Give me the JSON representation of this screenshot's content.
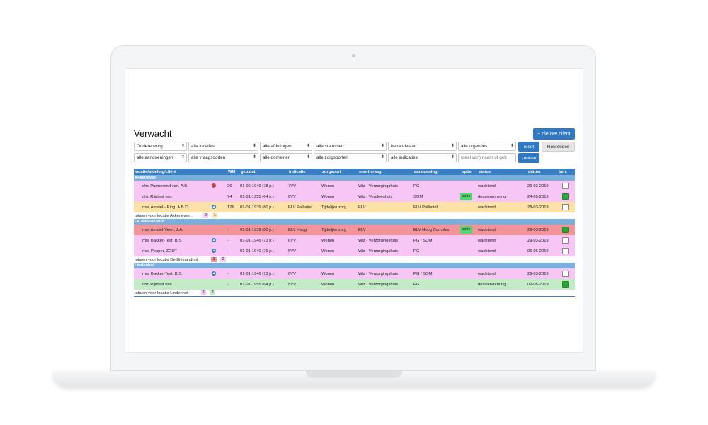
{
  "page": {
    "title": "Verwacht",
    "new_client_label": "+ nieuwe cliënt"
  },
  "filters": {
    "row1": [
      "Ouderenzorg",
      "alle locaties",
      "alle afdelingen",
      "alle statussen",
      "behandelaar",
      "alle urgenties"
    ],
    "row2": [
      "alle aandoeningen",
      "alle vraagsoorten",
      "alle domeinen",
      "alle zorgsoorten",
      "alle indicaties"
    ],
    "search_placeholder": "(deel van) naam of geb",
    "reset_label": "reset",
    "zoeken_label": "zoeken",
    "kleurcodes_label": "kleurcodes"
  },
  "table": {
    "headers": [
      "locatie/afdeling/cliënt",
      "WM",
      "geb.dat.",
      "indicatie",
      "zorgsoort",
      "soort vraag",
      "aandoening",
      "optie",
      "status",
      "datum",
      "beh."
    ],
    "groups": [
      {
        "name": "Akkerleven",
        "rows": [
          {
            "client": "dhr. Purmerend van, A.B.",
            "icon": "stop-icon",
            "wm": "26",
            "geb": "01-06-1940 (78 jr.)",
            "indicatie": "7VV",
            "zorgsoort": "Wonen",
            "vraag": "Wlz - Verzorgingshuis",
            "aandoening": "PG",
            "optie": "",
            "status": "wachtend",
            "datum": "29-03-2019",
            "beh": "unchecked",
            "color": "#f7c6f5"
          },
          {
            "client": "dhr. Rijntest van",
            "icon": "",
            "wm": "74",
            "geb": "01-01-1955 (64 jr.)",
            "indicatie": "6VV",
            "zorgsoort": "Wonen",
            "vraag": "Wlz - Verpleeghuis",
            "aandoening": "SOM",
            "optie": "optie",
            "status": "dossiervorming",
            "datum": "24-05-2019",
            "beh": "checked",
            "color": "#f7c6f5"
          },
          {
            "client": "mw. Amstel - Ring, A.B.C.",
            "icon": "arrow-up-icon",
            "wm": "126",
            "geb": "01-01-1939 (80 jr.)",
            "indicatie": "ELV Palliatief",
            "zorgsoort": "Tijdelijke zorg",
            "vraag": "ELV",
            "aandoening": "ELV Palliatief",
            "optie": "",
            "status": "wachtend",
            "datum": "28-03-2019",
            "beh": "unchecked",
            "color": "#fde2a8"
          }
        ],
        "total_label": "totalen voor locatie Akkerleven :",
        "totals": [
          "2",
          "1"
        ]
      },
      {
        "name": "De Bieslandhof",
        "rows": [
          {
            "client": "mw. Amstel-Veen, J.A.",
            "icon": "",
            "wm": "-",
            "geb": "01-01-1939 (80 jr.)",
            "indicatie": "ELV Hoog",
            "zorgsoort": "Tijdelijke zorg",
            "vraag": "ELV",
            "aandoening": "ELV Hoog Complex",
            "optie": "optie",
            "status": "wachtend",
            "datum": "29-03-2019",
            "beh": "checked",
            "color": "#f3949b"
          },
          {
            "client": "mw. Bakker-Test, B.S.",
            "icon": "arrow-up-icon",
            "wm": "-",
            "geb": "01-01-1946 (73 jr.)",
            "indicatie": "6VV",
            "zorgsoort": "Wonen",
            "vraag": "Wlz - Verzorgingshuis",
            "aandoening": "PG / SOM",
            "optie": "",
            "status": "wachtend",
            "datum": "29-03-2019",
            "beh": "unchecked",
            "color": "#f7c6f5"
          },
          {
            "client": "mw. Pepper, ZOUT",
            "icon": "arrow-up-icon",
            "wm": "-",
            "geb": "01-01-1940 (79 jr.)",
            "indicatie": "5VV",
            "zorgsoort": "Wonen",
            "vraag": "Wlz - Verzorgingshuis",
            "aandoening": "PG",
            "optie": "",
            "status": "wachtend",
            "datum": "05-06-2019",
            "beh": "unchecked",
            "color": "#f7c6f5"
          }
        ],
        "total_label": "totalen voor locatie De Bieslandhof :",
        "totals": [
          "1",
          "2"
        ]
      },
      {
        "name": "Lindenhof",
        "rows": [
          {
            "client": "mw. Bakker-Test, B.S.",
            "icon": "arrow-up-icon",
            "wm": "-",
            "geb": "01-01-1946 (73 jr.)",
            "indicatie": "6VV",
            "zorgsoort": "Wonen",
            "vraag": "Wlz - Verzorgingshuis",
            "aandoening": "PG / SOM",
            "optie": "",
            "status": "wachtend",
            "datum": "29-03-2019",
            "beh": "unchecked",
            "color": "#f7c6f5"
          },
          {
            "client": "dhr. Rijntest van",
            "icon": "",
            "wm": "-",
            "geb": "01-01-1955 (64 jr.)",
            "indicatie": "5VV",
            "zorgsoort": "Wonen",
            "vraag": "Wlz - Verzorgingshuis",
            "aandoening": "PG",
            "optie": "",
            "status": "dossiervorming",
            "datum": "02-05-2019",
            "beh": "checked",
            "color": "#c3ebc8"
          }
        ],
        "total_label": "totalen voor locatie Lindenhof :",
        "totals": [
          "1",
          "1"
        ]
      }
    ]
  },
  "colors": {
    "accent_blue": "#2f79c2",
    "header_blue": "#3a7fc4",
    "location_blue": "#7ab0de",
    "pink_row": "#f7c6f5",
    "orange_row": "#fde2a8",
    "red_row": "#f3949b",
    "green_row": "#c3ebc8",
    "optie_green": "#54d671",
    "checked_green": "#22aa33",
    "total_pink": "#f7c6f5",
    "total_yellow": "#fde2a8",
    "total_red": "#f3949b",
    "total_green": "#c3ebc8"
  }
}
